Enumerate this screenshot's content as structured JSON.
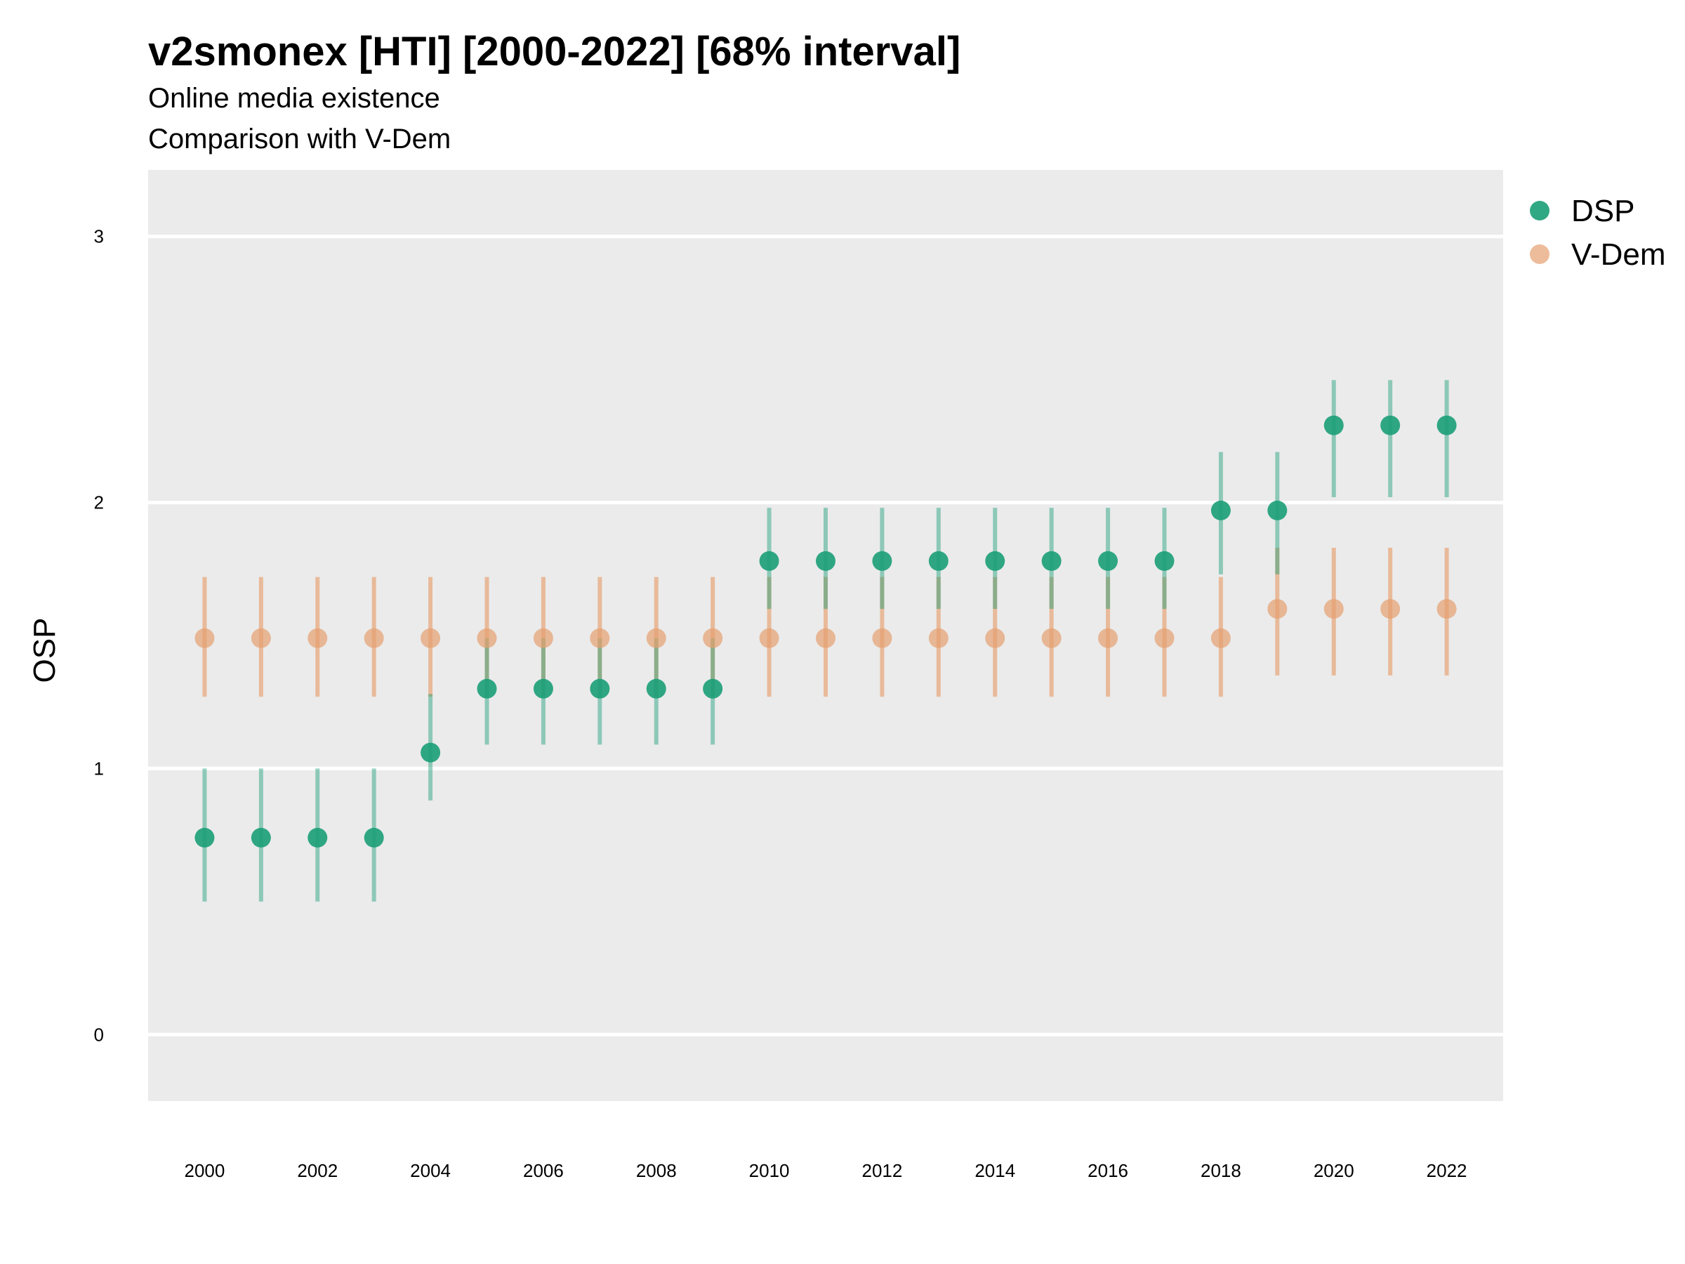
{
  "chart_data": {
    "type": "scatter",
    "title": "v2smonex [HTI] [2000-2022] [68% interval]",
    "subtitle": "Online media existence",
    "subtitle2": "Comparison with V-Dem",
    "xlabel": "",
    "ylabel": "OSP",
    "xlim": [
      1999,
      2023
    ],
    "ylim": [
      -0.25,
      3.25
    ],
    "x_ticks": [
      2000,
      2002,
      2004,
      2006,
      2008,
      2010,
      2012,
      2014,
      2016,
      2018,
      2020,
      2022
    ],
    "y_ticks": [
      0,
      1,
      2,
      3
    ],
    "grid": true,
    "legend_position": "right",
    "colors": {
      "DSP": "#1b9e77",
      "V-Dem": "#e6a06f",
      "panel": "#ebebeb",
      "grid": "#ffffff"
    },
    "series": [
      {
        "name": "DSP",
        "x": [
          2000,
          2001,
          2002,
          2003,
          2004,
          2005,
          2006,
          2007,
          2008,
          2009,
          2010,
          2011,
          2012,
          2013,
          2014,
          2015,
          2016,
          2017,
          2018,
          2019,
          2020,
          2021,
          2022
        ],
        "y": [
          0.74,
          0.74,
          0.74,
          0.74,
          1.06,
          1.3,
          1.3,
          1.3,
          1.3,
          1.3,
          1.78,
          1.78,
          1.78,
          1.78,
          1.78,
          1.78,
          1.78,
          1.78,
          1.97,
          1.97,
          2.29,
          2.29,
          2.29
        ],
        "lower": [
          0.5,
          0.5,
          0.5,
          0.5,
          0.88,
          1.09,
          1.09,
          1.09,
          1.09,
          1.09,
          1.6,
          1.6,
          1.6,
          1.6,
          1.6,
          1.6,
          1.6,
          1.6,
          1.73,
          1.73,
          2.02,
          2.02,
          2.02
        ],
        "upper": [
          1.0,
          1.0,
          1.0,
          1.0,
          1.28,
          1.49,
          1.49,
          1.49,
          1.49,
          1.49,
          1.98,
          1.98,
          1.98,
          1.98,
          1.98,
          1.98,
          1.98,
          1.98,
          2.19,
          2.19,
          2.46,
          2.46,
          2.46
        ]
      },
      {
        "name": "V-Dem",
        "x": [
          2000,
          2001,
          2002,
          2003,
          2004,
          2005,
          2006,
          2007,
          2008,
          2009,
          2010,
          2011,
          2012,
          2013,
          2014,
          2015,
          2016,
          2017,
          2018,
          2019,
          2020,
          2021,
          2022
        ],
        "y": [
          1.49,
          1.49,
          1.49,
          1.49,
          1.49,
          1.49,
          1.49,
          1.49,
          1.49,
          1.49,
          1.49,
          1.49,
          1.49,
          1.49,
          1.49,
          1.49,
          1.49,
          1.49,
          1.49,
          1.6,
          1.6,
          1.6,
          1.6
        ],
        "lower": [
          1.27,
          1.27,
          1.27,
          1.27,
          1.27,
          1.27,
          1.27,
          1.27,
          1.27,
          1.27,
          1.27,
          1.27,
          1.27,
          1.27,
          1.27,
          1.27,
          1.27,
          1.27,
          1.27,
          1.35,
          1.35,
          1.35,
          1.35
        ],
        "upper": [
          1.72,
          1.72,
          1.72,
          1.72,
          1.72,
          1.72,
          1.72,
          1.72,
          1.72,
          1.72,
          1.72,
          1.72,
          1.72,
          1.72,
          1.72,
          1.72,
          1.72,
          1.72,
          1.72,
          1.83,
          1.83,
          1.83,
          1.83
        ]
      }
    ]
  }
}
